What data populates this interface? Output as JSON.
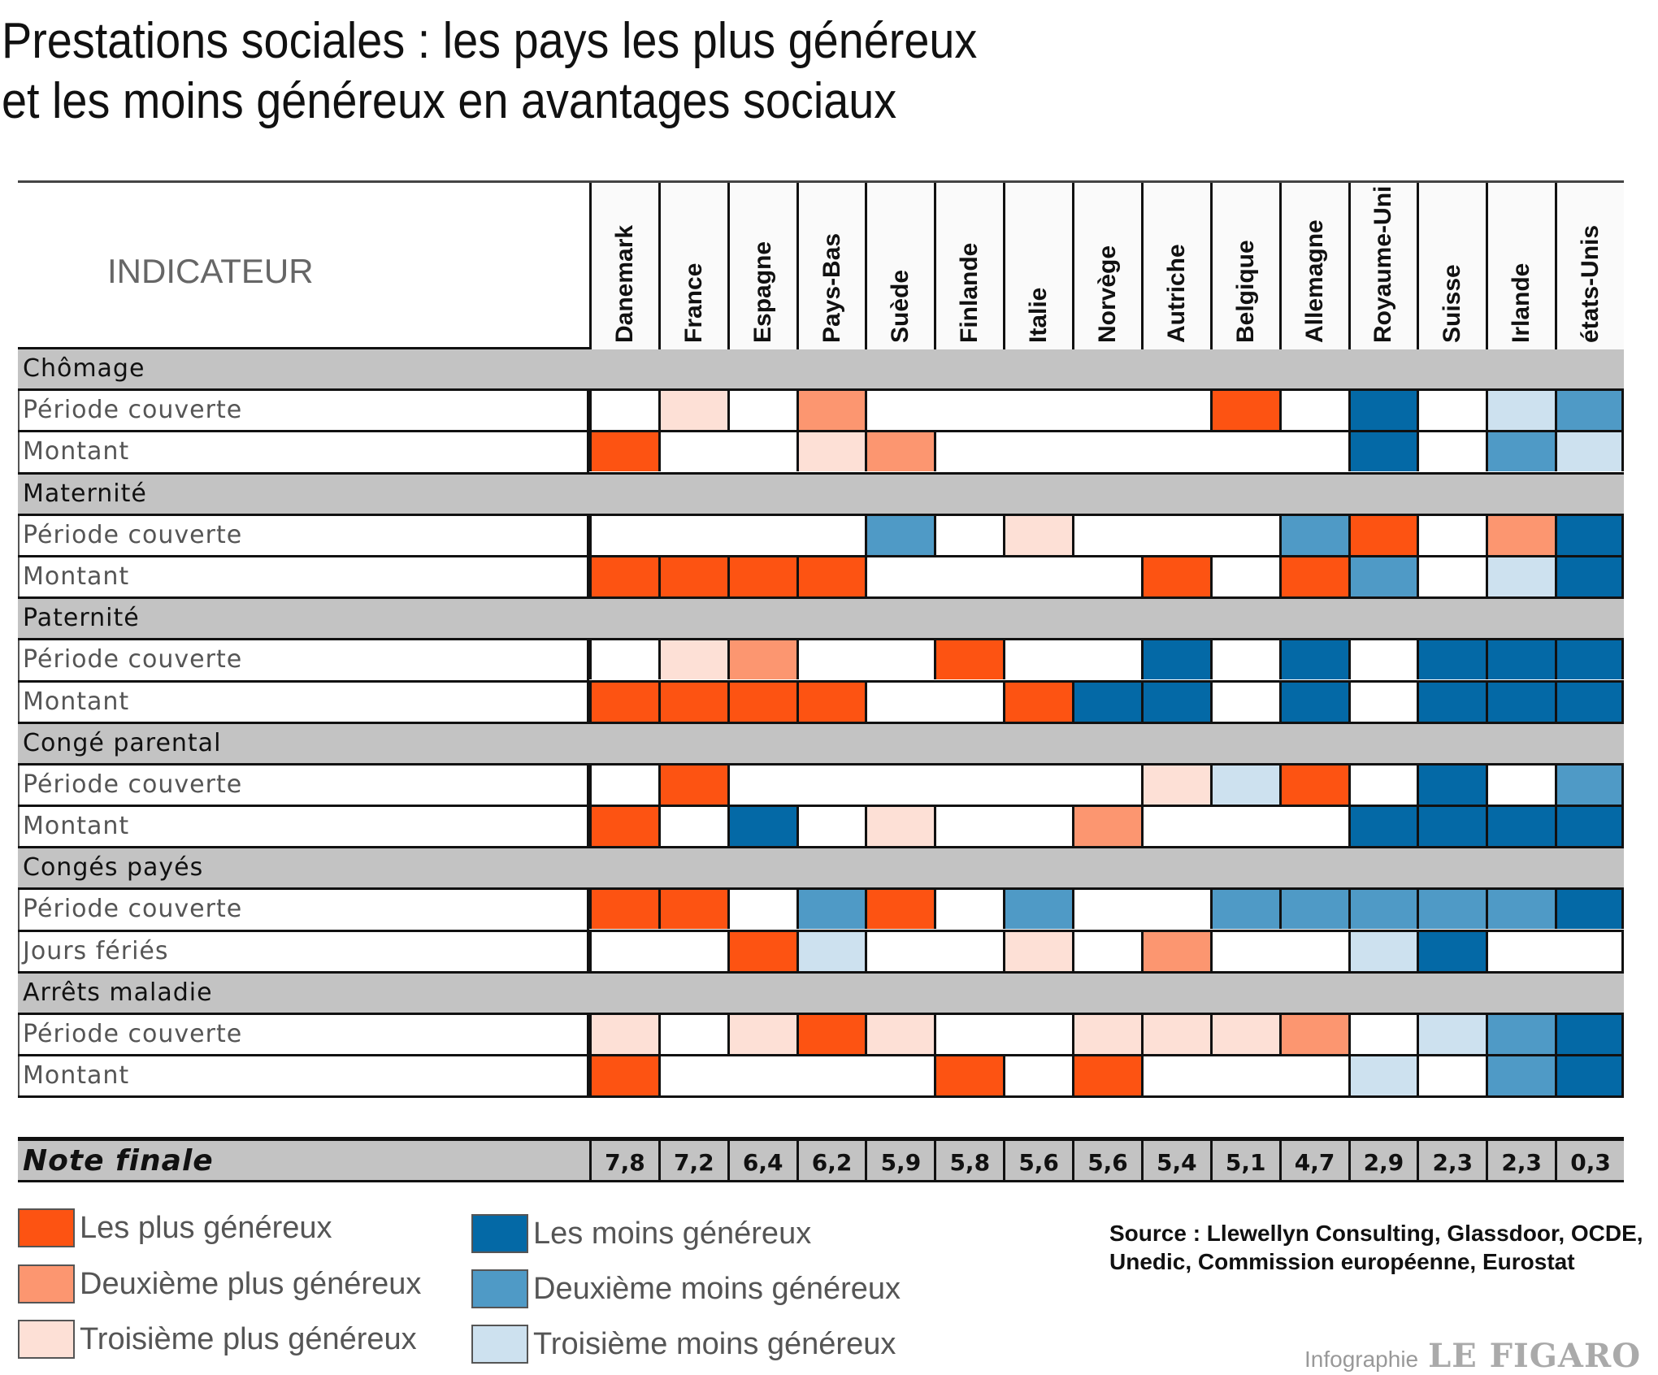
{
  "title_lines": [
    "Prestations sociales : les pays les plus généreux",
    "et les moins généreux en avantages sociaux"
  ],
  "chart_data": {
    "type": "heatmap",
    "column_header": "INDICATEUR",
    "countries": [
      "Danemark",
      "France",
      "Espagne",
      "Pays-Bas",
      "Suède",
      "Finlande",
      "Italie",
      "Norvège",
      "Autriche",
      "Belgique",
      "Allemagne",
      "Royaume-Uni",
      "Suisse",
      "Irlande",
      "états-Unis"
    ],
    "scale_note": "1 = plus généreux, 2 = deuxième plus généreux, 3 = troisième plus généreux, -1 = moins généreux, -2 = deuxième moins généreux, -3 = troisième moins généreux, 0 = aucun",
    "groups": [
      {
        "name": "Chômage",
        "rows": [
          {
            "label": "Période couverte",
            "values": [
              0,
              3,
              0,
              2,
              0,
              0,
              0,
              0,
              0,
              1,
              0,
              -1,
              0,
              -3,
              -2
            ]
          },
          {
            "label": "Montant",
            "values": [
              1,
              0,
              0,
              3,
              2,
              0,
              0,
              0,
              0,
              0,
              0,
              -1,
              0,
              -2,
              -3
            ]
          }
        ]
      },
      {
        "name": "Maternité",
        "rows": [
          {
            "label": "Période couverte",
            "values": [
              0,
              0,
              0,
              0,
              -2,
              0,
              3,
              0,
              0,
              0,
              -2,
              1,
              0,
              2,
              -1
            ]
          },
          {
            "label": "Montant",
            "values": [
              1,
              1,
              1,
              1,
              0,
              0,
              0,
              0,
              1,
              0,
              1,
              -2,
              0,
              -3,
              -1
            ]
          }
        ]
      },
      {
        "name": "Paternité",
        "rows": [
          {
            "label": "Période couverte",
            "values": [
              0,
              3,
              2,
              0,
              0,
              1,
              0,
              0,
              -1,
              0,
              -1,
              0,
              -1,
              -1,
              -1
            ]
          },
          {
            "label": "Montant",
            "values": [
              1,
              1,
              1,
              1,
              0,
              0,
              1,
              -1,
              -1,
              0,
              -1,
              0,
              -1,
              -1,
              -1
            ]
          }
        ]
      },
      {
        "name": "Congé parental",
        "rows": [
          {
            "label": "Période couverte",
            "values": [
              0,
              1,
              0,
              0,
              0,
              0,
              0,
              0,
              3,
              -3,
              1,
              0,
              -1,
              0,
              -2
            ]
          },
          {
            "label": "Montant",
            "values": [
              1,
              0,
              -1,
              0,
              3,
              0,
              0,
              2,
              0,
              0,
              0,
              -1,
              -1,
              -1,
              -1
            ]
          }
        ]
      },
      {
        "name": "Congés payés",
        "rows": [
          {
            "label": "Période couverte",
            "values": [
              1,
              1,
              0,
              -2,
              1,
              0,
              -2,
              0,
              0,
              -2,
              -2,
              -2,
              -2,
              -2,
              -1
            ]
          },
          {
            "label": "Jours fériés",
            "values": [
              0,
              0,
              1,
              -3,
              0,
              0,
              3,
              0,
              2,
              0,
              0,
              -3,
              -1,
              0,
              0
            ]
          }
        ]
      },
      {
        "name": "Arrêts maladie",
        "rows": [
          {
            "label": "Période couverte",
            "values": [
              3,
              0,
              3,
              1,
              3,
              0,
              0,
              3,
              3,
              3,
              2,
              0,
              -3,
              -2,
              -1
            ]
          },
          {
            "label": "Montant",
            "values": [
              1,
              0,
              0,
              0,
              0,
              1,
              0,
              1,
              0,
              0,
              0,
              -3,
              0,
              -2,
              -1
            ]
          }
        ]
      }
    ],
    "final_label": "Note finale",
    "final_scores": [
      "7,8",
      "7,2",
      "6,4",
      "6,2",
      "5,9",
      "5,8",
      "5,6",
      "5,6",
      "5,4",
      "5,1",
      "4,7",
      "2,9",
      "2,3",
      "2,3",
      "0,3"
    ],
    "colors": {
      "1": "#fd5312",
      "2": "#fc9670",
      "3": "#fde0d6",
      "0": "#ffffff",
      "-1": "#0469a6",
      "-2": "#4f9ac6",
      "-3": "#cde1ef"
    }
  },
  "legend": [
    {
      "label": "Les plus généreux",
      "color": "#fd5312"
    },
    {
      "label": "Deuxième plus généreux",
      "color": "#fc9670"
    },
    {
      "label": "Troisième plus généreux",
      "color": "#fde0d6"
    },
    {
      "label": "Les moins généreux",
      "color": "#0469a6"
    },
    {
      "label": "Deuxième moins généreux",
      "color": "#4f9ac6"
    },
    {
      "label": "Troisième moins généreux",
      "color": "#cde1ef"
    }
  ],
  "source_lines": [
    "Source : Llewellyn Consulting, Glassdoor, OCDE,",
    "Unedic, Commission européenne, Eurostat"
  ],
  "credit": {
    "prefix": "Infographie",
    "brand": "LE FIGARO"
  }
}
